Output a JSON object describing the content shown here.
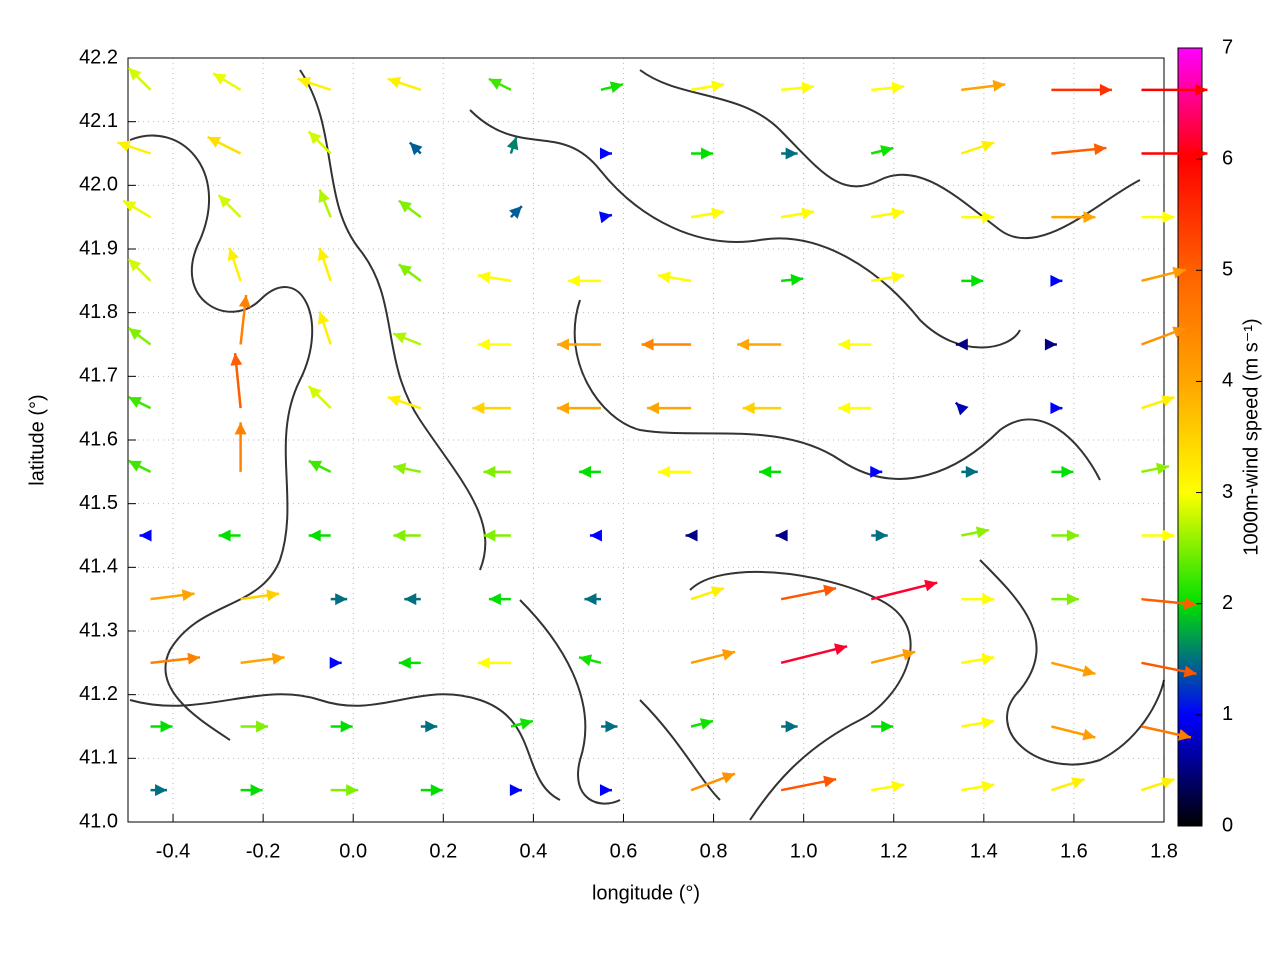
{
  "chart_data": {
    "type": "quiver",
    "xlabel": "longitude (°)",
    "ylabel": "latitude (°)",
    "xlim": [
      -0.5,
      1.8
    ],
    "ylim": [
      41.0,
      42.2
    ],
    "xticks": [
      -0.4,
      -0.2,
      {
        "value": 0,
        "label": "0.0"
      },
      0.2,
      0.4,
      0.6,
      0.8,
      {
        "value": 1,
        "label": "1.0"
      },
      1.2,
      1.4,
      1.6,
      1.8
    ],
    "yticks": [
      {
        "value": 41,
        "label": "41.0"
      },
      41.1,
      41.2,
      41.3,
      41.4,
      41.5,
      41.6,
      41.7,
      41.8,
      41.9,
      {
        "value": 42,
        "label": "42.0"
      },
      42.1,
      42.2
    ],
    "grid": true,
    "x": [
      -0.45,
      -0.25,
      -0.05,
      0.15,
      0.35,
      0.55,
      0.75,
      0.95,
      1.15,
      1.35,
      1.55,
      1.75
    ],
    "y": [
      42.15,
      42.05,
      41.95,
      41.85,
      41.75,
      41.65,
      41.55,
      41.45,
      41.35,
      41.25,
      41.15,
      41.05
    ],
    "u": [
      [
        -2,
        -2.5,
        -3,
        -3,
        -2,
        2,
        3,
        3,
        3,
        4,
        5.5,
        6
      ],
      [
        -3,
        -3,
        -2,
        -1,
        0.5,
        1,
        2,
        1.5,
        2,
        3,
        5,
        6
      ],
      [
        -2.5,
        -2,
        -1,
        -2,
        1,
        1,
        3,
        3,
        3,
        3,
        4,
        3
      ],
      [
        -2,
        -1,
        -1,
        -2,
        -3,
        -3,
        -3,
        2,
        3,
        2,
        1,
        4
      ],
      [
        -2,
        0.5,
        -1,
        -2.5,
        -3,
        -4,
        -4.5,
        -4,
        -3,
        -0.5,
        0.5,
        4
      ],
      [
        -2,
        -0.5,
        -2,
        -3,
        -3.5,
        -4,
        -4,
        -3.5,
        -3,
        -0.5,
        1,
        3
      ],
      [
        -2,
        0,
        -2,
        -2.5,
        -2.5,
        -2,
        -3,
        -2,
        1,
        1.5,
        2,
        2.5
      ],
      [
        -1,
        -2,
        -2,
        -2.5,
        -2.5,
        -1,
        -0.5,
        -0.5,
        1.5,
        2.5,
        2.5,
        3
      ],
      [
        4,
        3.5,
        1.5,
        -1.5,
        -2,
        -1.5,
        3,
        5,
        6,
        3,
        2.5,
        5
      ],
      [
        4.5,
        4,
        1,
        -2,
        -3,
        -2,
        4,
        6,
        4,
        3,
        4,
        5
      ],
      [
        2,
        2.5,
        2,
        1.5,
        2,
        1.5,
        2,
        1.5,
        2,
        3,
        4,
        4.5
      ],
      [
        1.5,
        2,
        2.5,
        2,
        1,
        1,
        4,
        5,
        3,
        3,
        3,
        3
      ]
    ],
    "v": [
      [
        2,
        1.5,
        1,
        1,
        1,
        0.5,
        0.5,
        0.3,
        0.3,
        0.5,
        0,
        0
      ],
      [
        1,
        1.5,
        2,
        1,
        1.5,
        0,
        0,
        0,
        0.5,
        1,
        0.5,
        0
      ],
      [
        1.5,
        2,
        2.5,
        1.5,
        1,
        0.2,
        0.5,
        0.5,
        0.5,
        0,
        0,
        0
      ],
      [
        2,
        3,
        3,
        1.5,
        0.5,
        0,
        0.5,
        0.2,
        0.5,
        0,
        0,
        1
      ],
      [
        1.5,
        4.5,
        3,
        1,
        0,
        0,
        0,
        0,
        0,
        0,
        0,
        1.5
      ],
      [
        1,
        5,
        2,
        1,
        0,
        0,
        0,
        0,
        0,
        0.5,
        0,
        1
      ],
      [
        1,
        4.5,
        1,
        0.5,
        0,
        0,
        0,
        0,
        0,
        0,
        0,
        0.5
      ],
      [
        0,
        0,
        0,
        0,
        0,
        0,
        0,
        0,
        0,
        0.5,
        0,
        0
      ],
      [
        0.5,
        0.5,
        0,
        0,
        0,
        0,
        1,
        1,
        1.5,
        0,
        0,
        -0.5
      ],
      [
        0.5,
        0.5,
        0,
        0,
        0,
        0.5,
        1,
        1.5,
        1,
        0.5,
        -1,
        -1
      ],
      [
        0,
        0,
        0,
        0,
        0.5,
        0,
        0.5,
        0,
        0,
        0.5,
        -1,
        -1
      ],
      [
        0,
        0,
        0,
        0,
        0,
        0,
        1.5,
        1,
        0.5,
        0.5,
        1,
        1
      ]
    ],
    "colorbar": {
      "label": "1000m-wind speed (m s⁻¹)",
      "lim": [
        0,
        7
      ],
      "ticks": [
        0,
        1,
        2,
        3,
        4,
        5,
        6,
        7
      ],
      "colors": [
        "#000000",
        "#0000ff",
        "#00e000",
        "#ffff00",
        "#ffa500",
        "#ff6000",
        "#ff0000",
        "#ff00ff"
      ]
    }
  }
}
